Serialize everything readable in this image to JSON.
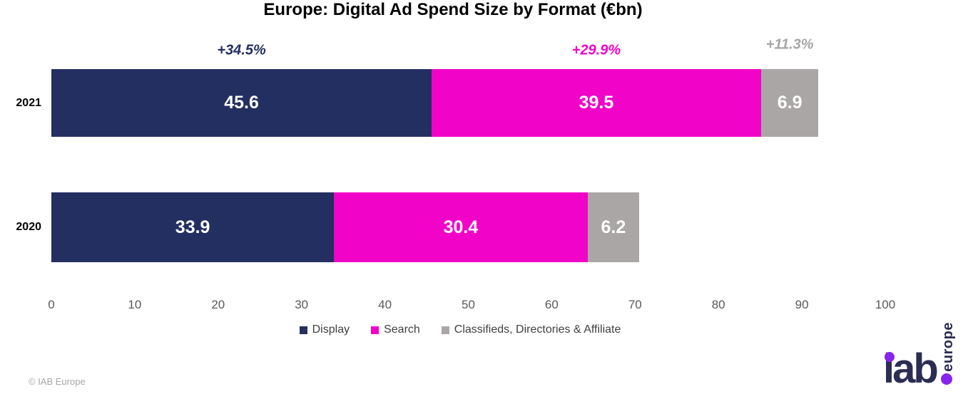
{
  "title": "Europe: Digital Ad Spend Size by Format (€bn)",
  "chart_data": {
    "type": "bar",
    "orientation": "horizontal",
    "stacked": true,
    "grid": false,
    "legend_position": "bottom",
    "categories": [
      "2021",
      "2020"
    ],
    "series": [
      {
        "name": "Display",
        "color": "#232F61",
        "values": [
          45.6,
          33.9
        ]
      },
      {
        "name": "Search",
        "color": "#F203C8",
        "values": [
          39.5,
          30.4
        ]
      },
      {
        "name": "Classifieds, Directories & Affiliate",
        "color": "#ABA6A6",
        "values": [
          6.9,
          6.2
        ]
      }
    ],
    "growth_labels": [
      {
        "text": "+34.5%",
        "color": "#232F61"
      },
      {
        "text": "+29.9%",
        "color": "#F203C8"
      },
      {
        "text": "+11.3%",
        "color": "#A6A6A6"
      }
    ],
    "x_axis": {
      "min": 0,
      "max": 100,
      "ticks": [
        0,
        10,
        20,
        30,
        40,
        50,
        60,
        70,
        80,
        90,
        100
      ]
    }
  },
  "footer": {
    "copyright": "© IAB Europe"
  },
  "logo": {
    "brand": "iab",
    "region": "europe",
    "navy": "#2B2D52",
    "purple": "#8625EC"
  }
}
